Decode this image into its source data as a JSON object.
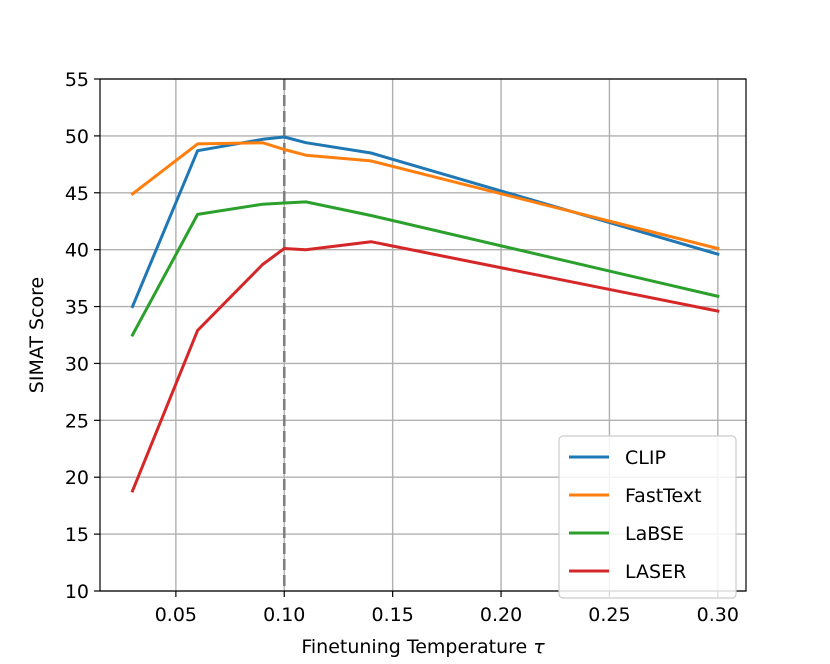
{
  "chart_data": {
    "type": "line",
    "xlabel": "Finetuning Temperature",
    "xlabel_symbol": "τ",
    "ylabel": "SIMAT Score",
    "xlim": [
      0.015,
      0.313
    ],
    "ylim": [
      10,
      55
    ],
    "xticks": [
      0.05,
      0.1,
      0.15,
      0.2,
      0.25,
      0.3
    ],
    "xtick_labels": [
      "0.05",
      "0.10",
      "0.15",
      "0.20",
      "0.25",
      "0.30"
    ],
    "yticks": [
      10,
      15,
      20,
      25,
      30,
      35,
      40,
      45,
      50,
      55
    ],
    "ytick_labels": [
      "10",
      "15",
      "20",
      "25",
      "30",
      "35",
      "40",
      "45",
      "50",
      "55"
    ],
    "grid": true,
    "legend_position": "lower-right",
    "vline": {
      "x": 0.1,
      "color": "#7f7f7f",
      "style": "dashed"
    },
    "x": [
      0.03,
      0.06,
      0.09,
      0.1,
      0.11,
      0.14,
      0.3
    ],
    "series": [
      {
        "name": "CLIP",
        "color": "#1f77b4",
        "values": [
          35.0,
          48.7,
          49.7,
          49.9,
          49.4,
          48.5,
          39.6
        ]
      },
      {
        "name": "FastText",
        "color": "#ff7f0e",
        "values": [
          44.9,
          49.3,
          49.4,
          48.8,
          48.3,
          47.8,
          40.1
        ]
      },
      {
        "name": "LaBSE",
        "color": "#2ca02c",
        "values": [
          32.5,
          43.1,
          44.0,
          44.1,
          44.2,
          43.0,
          35.9
        ]
      },
      {
        "name": "LASER",
        "color": "#d62728",
        "values": [
          18.8,
          32.9,
          38.7,
          40.1,
          40.0,
          40.7,
          34.6
        ]
      }
    ]
  }
}
